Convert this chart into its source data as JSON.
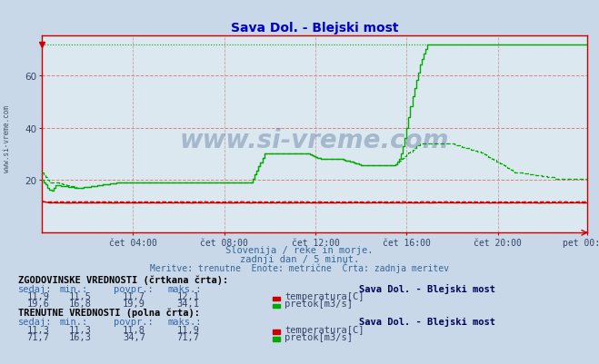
{
  "title": "Sava Dol. - Blejski most",
  "bg_color": "#c8d8e8",
  "plot_bg_color": "#dce8f0",
  "grid_color_h": "#e08080",
  "grid_color_v": "#c8a0a0",
  "ylim": [
    0,
    75
  ],
  "yticks": [
    20,
    40,
    60
  ],
  "xlabel_ticks": [
    "čet 04:00",
    "čet 08:00",
    "čet 12:00",
    "čet 16:00",
    "čet 20:00",
    "pet 00:00"
  ],
  "temp_color": "#cc0000",
  "flow_color": "#00aa00",
  "watermark": "www.si-vreme.com",
  "subtitle1": "Slovenija / reke in morje.",
  "subtitle2": "zadnji dan / 5 minut.",
  "subtitle3": "Meritve: trenutne  Enote: metrične  Črta: zadnja meritev",
  "table_title1": "ZGODOVINSKE VREDNOSTI (črtkana črta):",
  "table_title2": "TRENUTNE VREDNOSTI (polna črta):",
  "hist_temp_sedaj": "11,9",
  "hist_temp_min": "11,5",
  "hist_temp_povpr": "11,7",
  "hist_temp_maks": "12,1",
  "hist_flow_sedaj": "19,6",
  "hist_flow_min": "16,8",
  "hist_flow_povpr": "19,9",
  "hist_flow_maks": "34,1",
  "curr_temp_sedaj": "11,3",
  "curr_temp_min": "11,3",
  "curr_temp_povpr": "11,8",
  "curr_temp_maks": "11,9",
  "curr_flow_sedaj": "71,7",
  "curr_flow_min": "16,3",
  "curr_flow_povpr": "34,7",
  "curr_flow_maks": "71,7",
  "label_temp": "temperatura[C]",
  "label_flow": "pretok[m3/s]",
  "station": "Sava Dol. - Blejski most"
}
